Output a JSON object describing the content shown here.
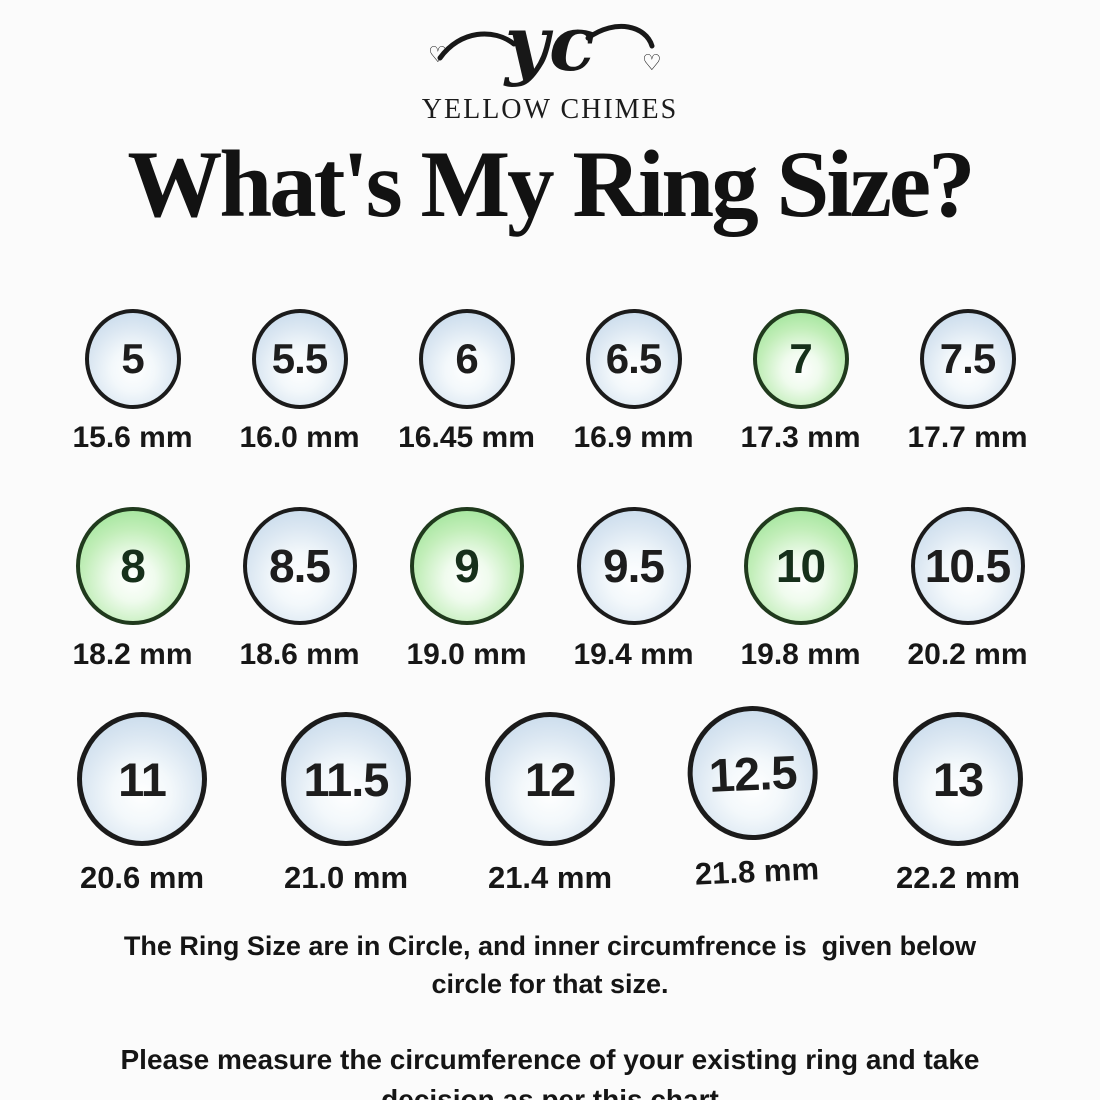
{
  "brand": {
    "logo_text": "yc",
    "name": "YELLOW CHIMES"
  },
  "title": "What's My Ring Size?",
  "colors": {
    "blue_fill": "#bed4e8",
    "green_fill": "#8fe08a",
    "border": "#1b1b1b"
  },
  "rows": [
    {
      "items": [
        {
          "size": "5",
          "mm": "15.6 mm",
          "color": "blue"
        },
        {
          "size": "5.5",
          "mm": "16.0 mm",
          "color": "blue"
        },
        {
          "size": "6",
          "mm": "16.45 mm",
          "color": "blue"
        },
        {
          "size": "6.5",
          "mm": "16.9 mm",
          "color": "blue"
        },
        {
          "size": "7",
          "mm": "17.3 mm",
          "color": "green"
        },
        {
          "size": "7.5",
          "mm": "17.7 mm",
          "color": "blue"
        }
      ]
    },
    {
      "items": [
        {
          "size": "8",
          "mm": "18.2 mm",
          "color": "green"
        },
        {
          "size": "8.5",
          "mm": "18.6 mm",
          "color": "blue"
        },
        {
          "size": "9",
          "mm": "19.0 mm",
          "color": "green"
        },
        {
          "size": "9.5",
          "mm": "19.4 mm",
          "color": "blue"
        },
        {
          "size": "10",
          "mm": "19.8 mm",
          "color": "green"
        },
        {
          "size": "10.5",
          "mm": "20.2 mm",
          "color": "blue"
        }
      ]
    },
    {
      "items": [
        {
          "size": "11",
          "mm": "20.6 mm",
          "color": "blue"
        },
        {
          "size": "11.5",
          "mm": "21.0 mm",
          "color": "blue"
        },
        {
          "size": "12",
          "mm": "21.4 mm",
          "color": "blue"
        },
        {
          "size": "12.5",
          "mm": "21.8 mm",
          "color": "blue"
        },
        {
          "size": "13",
          "mm": "22.2 mm",
          "color": "blue"
        }
      ]
    }
  ],
  "notes": {
    "note1_line1": "The Ring Size are in Circle, and inner circumfrence is  given below",
    "note1_line2": "circle for that size.",
    "note2_line1": "Please measure the circumference of your existing ring and take",
    "note2_line2": "decision as per this chart"
  }
}
